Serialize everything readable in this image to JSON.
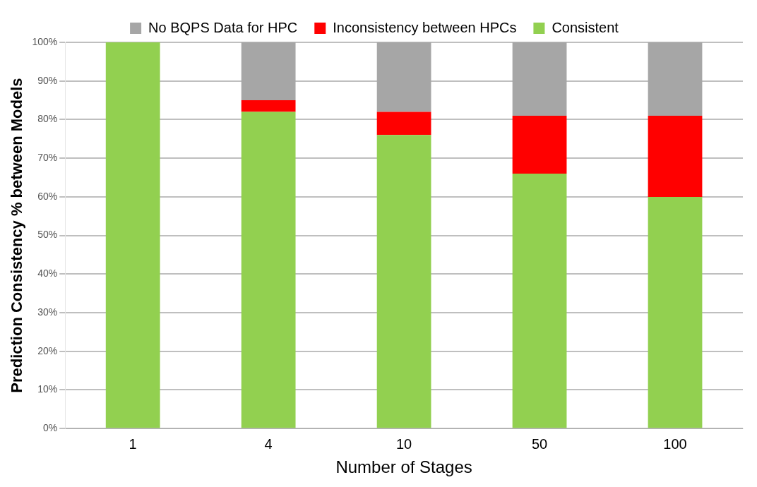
{
  "chart_data": {
    "type": "bar",
    "stacked": true,
    "xlabel": "Number of Stages",
    "ylabel": "Prediction Consistency % between Models",
    "categories": [
      "1",
      "4",
      "10",
      "50",
      "100"
    ],
    "series": [
      {
        "name": "Consistent",
        "color": "#92d050",
        "values": [
          100,
          82,
          76,
          66,
          60
        ]
      },
      {
        "name": "Inconsistency between HPCs",
        "color": "#ff0000",
        "values": [
          0,
          3,
          6,
          15,
          21
        ]
      },
      {
        "name": "No BQPS Data for HPC",
        "color": "#a6a6a6",
        "values": [
          0,
          15,
          18,
          19,
          19
        ]
      }
    ],
    "ylim": [
      0,
      100
    ],
    "yticks": [
      {
        "value": 0,
        "label": "0%"
      },
      {
        "value": 10,
        "label": "10%"
      },
      {
        "value": 20,
        "label": "20%"
      },
      {
        "value": 30,
        "label": "30%"
      },
      {
        "value": 40,
        "label": "40%"
      },
      {
        "value": 50,
        "label": "50%"
      },
      {
        "value": 60,
        "label": "60%"
      },
      {
        "value": 70,
        "label": "70%"
      },
      {
        "value": 80,
        "label": "80%"
      },
      {
        "value": 90,
        "label": "90%"
      },
      {
        "value": 100,
        "label": "100%"
      }
    ],
    "grid": "y",
    "legend": "top"
  }
}
